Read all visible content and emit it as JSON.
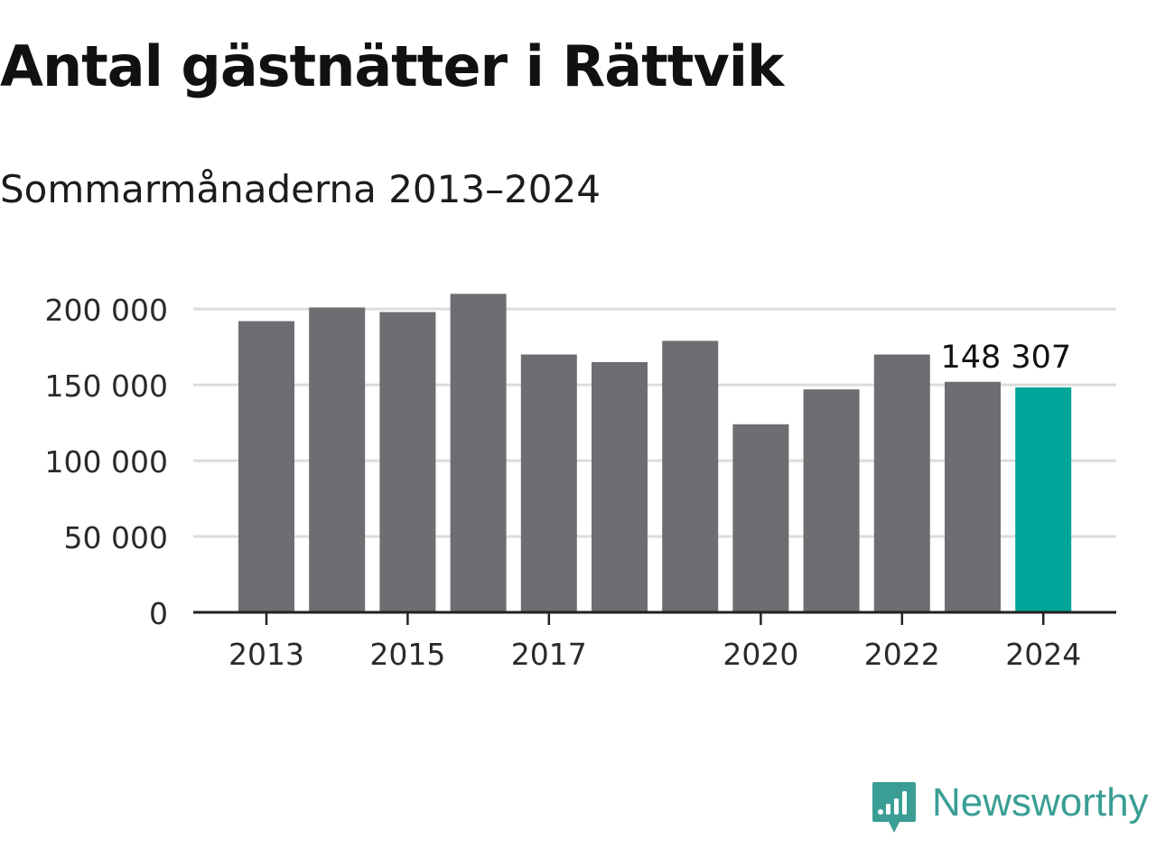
{
  "title": "Antal gästnätter i Rättvik",
  "subtitle": "Sommarmånaderna 2013–2024",
  "brand": {
    "name": "Newsworthy",
    "color": "#3a9e94",
    "icon": "newsworthy-logo-icon"
  },
  "colors": {
    "bar": "#6e6d72",
    "highlight": "#00a599",
    "grid": "#dcdcdc",
    "axis": "#222222",
    "text": "#2a2a2a"
  },
  "chart_data": {
    "type": "bar",
    "title": "Antal gästnätter i Rättvik",
    "subtitle": "Sommarmånaderna 2013–2024",
    "xlabel": "",
    "ylabel": "",
    "categories": [
      "2013",
      "2014",
      "2015",
      "2016",
      "2017",
      "2018",
      "2019",
      "2020",
      "2021",
      "2022",
      "2023",
      "2024"
    ],
    "values": [
      192000,
      201000,
      198000,
      210000,
      170000,
      165000,
      179000,
      124000,
      147000,
      170000,
      152000,
      148307
    ],
    "x_tick_labels": [
      "2013",
      "2015",
      "2017",
      "2020",
      "2022",
      "2024"
    ],
    "y_ticks": [
      0,
      50000,
      100000,
      150000,
      200000
    ],
    "y_tick_labels": [
      "0",
      "50 000",
      "100 000",
      "150 000",
      "200 000"
    ],
    "ylim": [
      0,
      210000
    ],
    "grid": true,
    "highlight_category": "2024",
    "data_labels": [
      {
        "category": "2024",
        "text": "148 307"
      }
    ]
  }
}
